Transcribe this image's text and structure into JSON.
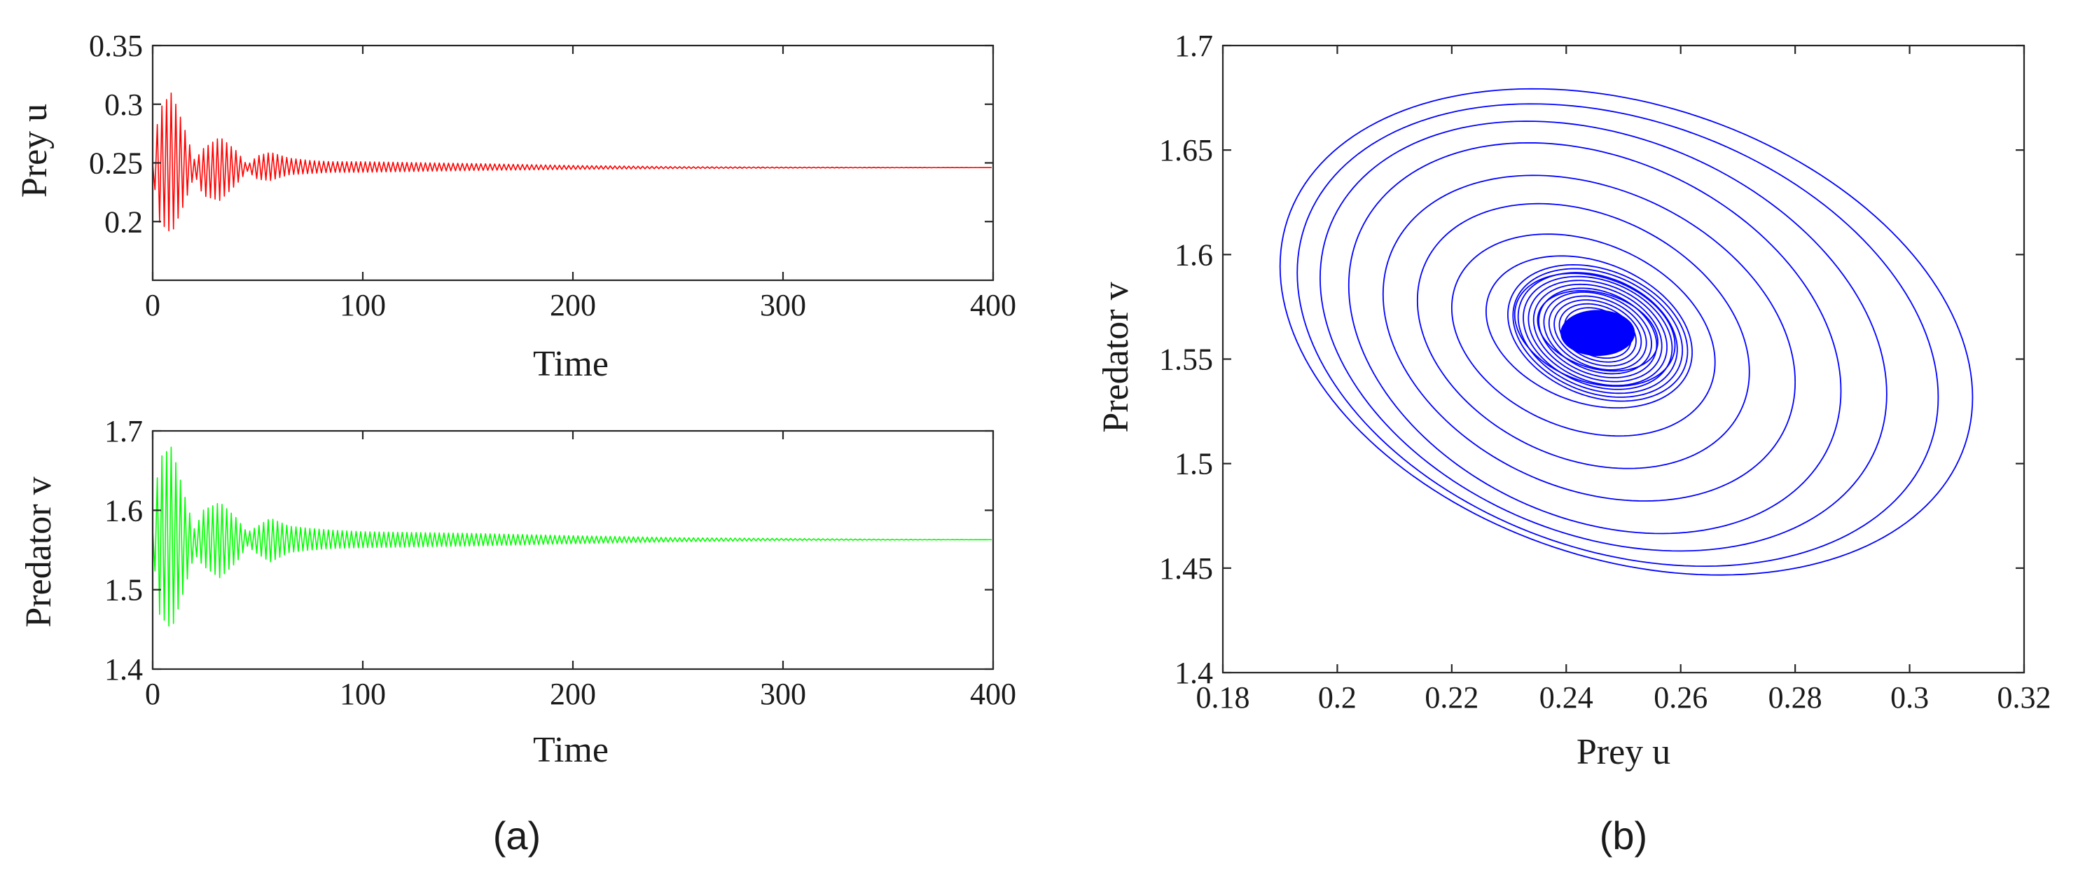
{
  "chart_data": [
    {
      "type": "line",
      "panel": "(a)",
      "xlabel": "Time",
      "ylabel": "Prey u",
      "xlim": [
        0,
        400
      ],
      "ylim": [
        0.15,
        0.35
      ],
      "xticks": [
        0,
        100,
        200,
        300,
        400
      ],
      "yticks": [
        0.2,
        0.25,
        0.3,
        0.35
      ],
      "grid": false,
      "series": [
        {
          "color": "#ff0000",
          "equilibrium": 0.246,
          "envelope": {
            "t": [
              0,
              3,
              9,
              15,
              20,
              24,
              32,
              40,
              45,
              50,
              56,
              65,
              75,
              85,
              100,
              150,
              200,
              250,
              300,
              350,
              400
            ],
            "min": [
              0.243,
              0.2,
              0.19,
              0.215,
              0.24,
              0.222,
              0.218,
              0.232,
              0.243,
              0.236,
              0.235,
              0.24,
              0.241,
              0.242,
              0.242,
              0.2435,
              0.2445,
              0.2452,
              0.2456,
              0.2458,
              0.246
            ],
            "max": [
              0.249,
              0.295,
              0.31,
              0.28,
              0.252,
              0.262,
              0.272,
              0.26,
              0.248,
              0.256,
              0.259,
              0.254,
              0.252,
              0.251,
              0.251,
              0.2495,
              0.2478,
              0.2468,
              0.2464,
              0.2462,
              0.246
            ]
          }
        }
      ]
    },
    {
      "type": "line",
      "panel": "(a)",
      "xlabel": "Time",
      "ylabel": "Predator v",
      "xlim": [
        0,
        400
      ],
      "ylim": [
        1.4,
        1.7
      ],
      "xticks": [
        0,
        100,
        200,
        300,
        400
      ],
      "yticks": [
        1.4,
        1.5,
        1.6,
        1.7
      ],
      "grid": false,
      "series": [
        {
          "color": "#00ff00",
          "equilibrium": 1.563,
          "envelope": {
            "t": [
              0,
              3,
              9,
              15,
              20,
              24,
              32,
              40,
              45,
              50,
              56,
              65,
              75,
              85,
              100,
              150,
              200,
              250,
              300,
              350,
              400
            ],
            "min": [
              1.555,
              1.47,
              1.45,
              1.5,
              1.545,
              1.53,
              1.515,
              1.535,
              1.555,
              1.545,
              1.535,
              1.547,
              1.55,
              1.552,
              1.553,
              1.555,
              1.558,
              1.5605,
              1.562,
              1.5625,
              1.563
            ],
            "max": [
              1.575,
              1.665,
              1.68,
              1.62,
              1.575,
              1.6,
              1.61,
              1.59,
              1.572,
              1.58,
              1.59,
              1.58,
              1.577,
              1.575,
              1.573,
              1.571,
              1.568,
              1.5655,
              1.5645,
              1.5635,
              1.563
            ]
          }
        }
      ]
    },
    {
      "type": "line",
      "panel": "(b)",
      "xlabel": "Prey u",
      "ylabel": "Predator v",
      "xlim": [
        0.18,
        0.32
      ],
      "ylim": [
        1.4,
        1.7
      ],
      "xticks": [
        0.18,
        0.2,
        0.22,
        0.24,
        0.26,
        0.28,
        0.3,
        0.32
      ],
      "yticks": [
        1.4,
        1.45,
        1.5,
        1.55,
        1.6,
        1.65,
        1.7
      ],
      "grid": false,
      "series": [
        {
          "color": "#0000ff",
          "center": [
            0.2455,
            1.5625
          ],
          "rings": [
            {
              "u_min": 0.19,
              "u_max": 0.311,
              "v_min": 1.451,
              "v_max": 1.675
            },
            {
              "u_min": 0.193,
              "u_max": 0.305,
              "v_min": 1.455,
              "v_max": 1.668
            },
            {
              "u_min": 0.197,
              "u_max": 0.296,
              "v_min": 1.462,
              "v_max": 1.66
            },
            {
              "u_min": 0.202,
              "u_max": 0.288,
              "v_min": 1.47,
              "v_max": 1.65
            },
            {
              "u_min": 0.208,
              "u_max": 0.28,
              "v_min": 1.485,
              "v_max": 1.635
            },
            {
              "u_min": 0.214,
              "u_max": 0.272,
              "v_min": 1.5,
              "v_max": 1.622
            },
            {
              "u_min": 0.22,
              "u_max": 0.266,
              "v_min": 1.515,
              "v_max": 1.608
            },
            {
              "u_min": 0.226,
              "u_max": 0.262,
              "v_min": 1.528,
              "v_max": 1.598
            },
            {
              "u_min": 0.231,
              "u_max": 0.259,
              "v_min": 1.538,
              "v_max": 1.59
            },
            {
              "u_min": 0.235,
              "u_max": 0.256,
              "v_min": 1.545,
              "v_max": 1.582
            }
          ]
        }
      ]
    }
  ],
  "labels": {
    "panel_a": "(a)",
    "panel_b": "(b)"
  }
}
